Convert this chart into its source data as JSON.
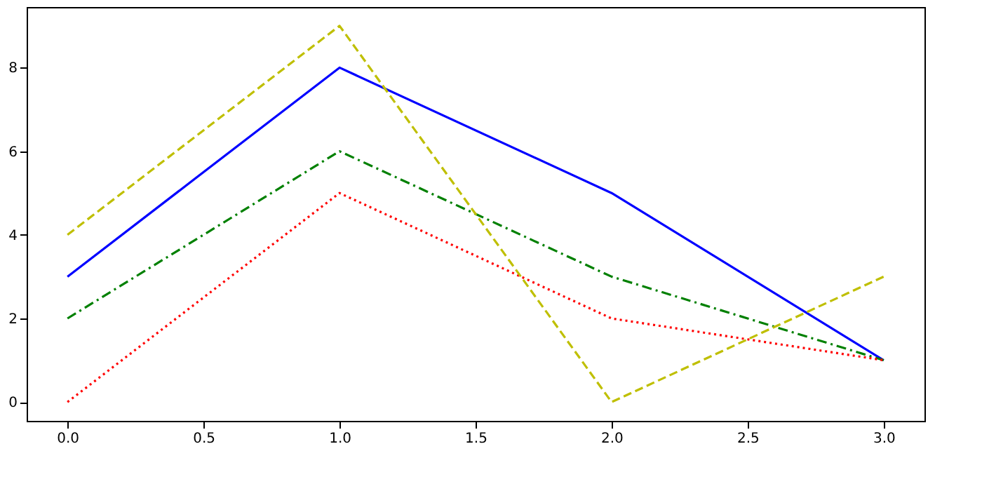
{
  "chart_data": {
    "type": "line",
    "x": [
      0,
      1,
      2,
      3
    ],
    "series": [
      {
        "color": "#0000ff",
        "values": [
          3,
          8,
          5,
          1
        ],
        "line_style": "solid"
      },
      {
        "color": "#008000",
        "values": [
          2,
          6,
          3,
          1
        ],
        "line_style": "dashdot"
      },
      {
        "color": "#ff0000",
        "values": [
          0,
          5,
          2,
          1
        ],
        "line_style": "dotted"
      },
      {
        "color": "#bfbf00",
        "values": [
          4,
          9,
          0,
          3
        ],
        "line_style": "dashed"
      }
    ],
    "xlim": [
      -0.15,
      3.15
    ],
    "xticks": [
      {
        "value": 0,
        "label": "0.0"
      },
      0.5,
      {
        "value": 1,
        "label": "1.0"
      },
      1.5,
      {
        "value": 2,
        "label": "2.0"
      },
      2.5,
      {
        "value": 3,
        "label": "3.0"
      }
    ],
    "ylim": [
      -0.45,
      9.45
    ],
    "yticks": [
      0,
      2,
      4,
      6,
      8
    ],
    "grid": false,
    "marker": "none"
  }
}
